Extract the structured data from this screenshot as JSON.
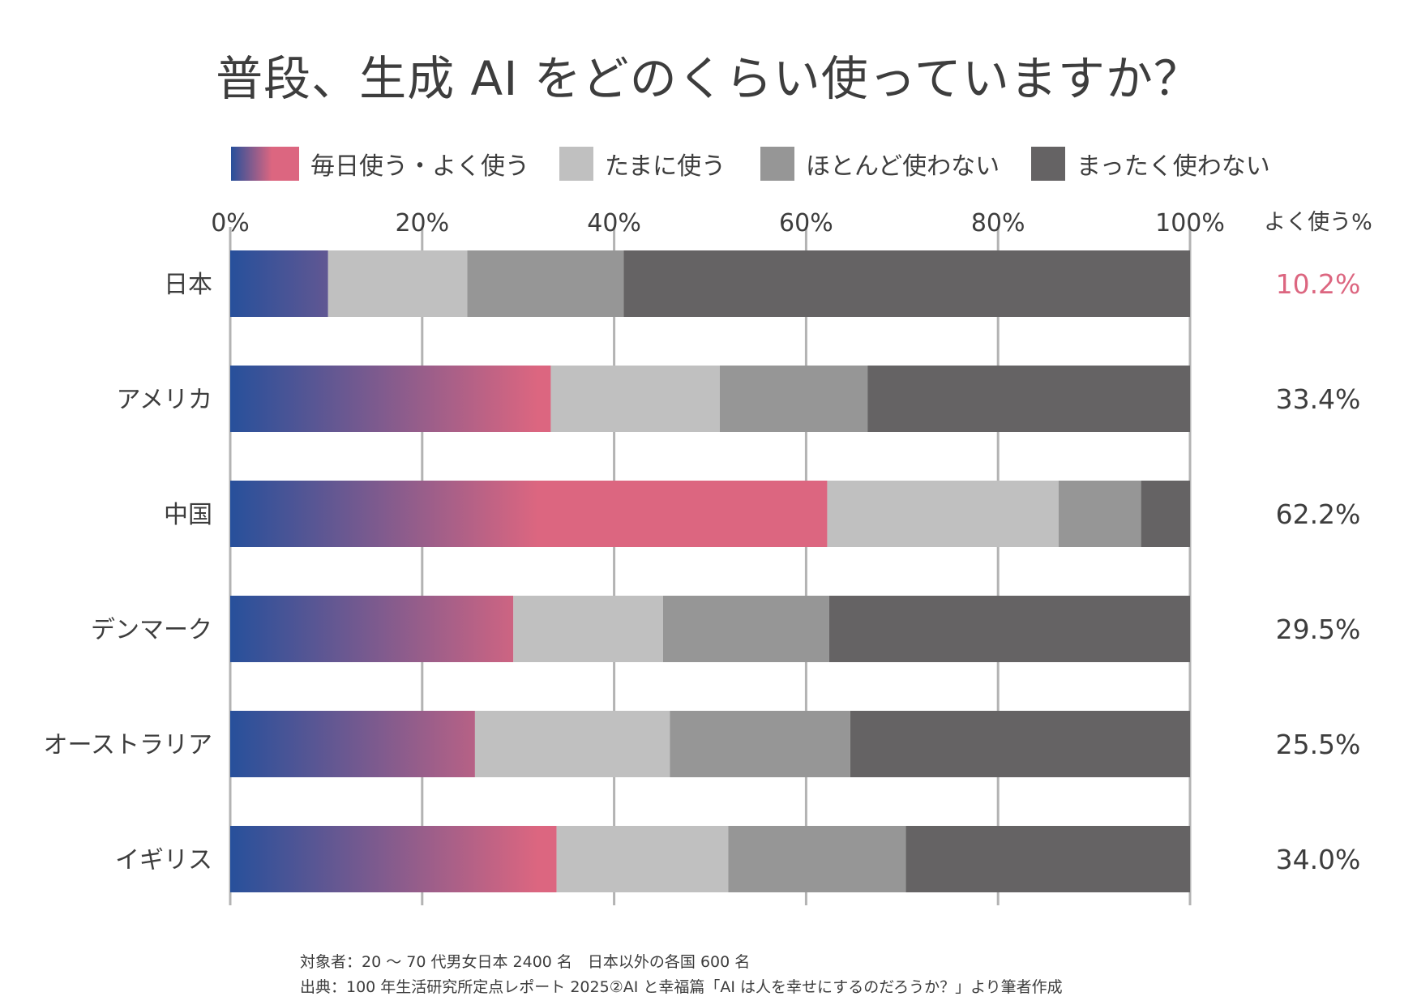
{
  "title": "普段、生成 AI をどのくらい使っていますか？",
  "chart_data": {
    "type": "bar",
    "orientation": "horizontal",
    "stacked": true,
    "categories": [
      "日本",
      "アメリカ",
      "中国",
      "デンマーク",
      "オーストラリア",
      "イギリス"
    ],
    "series": [
      {
        "name": "毎日使う・よく使う",
        "values": [
          10.2,
          33.4,
          62.2,
          29.5,
          25.5,
          34.0
        ],
        "color": "#dc6680",
        "gradient_start": "#27509b"
      },
      {
        "name": "たまに使う",
        "values": [
          14.5,
          17.6,
          24.1,
          15.6,
          20.3,
          17.9
        ],
        "color": "#c0c0c0"
      },
      {
        "name": "ほとんど使わない",
        "values": [
          16.3,
          15.4,
          8.6,
          17.3,
          18.8,
          18.5
        ],
        "color": "#969696"
      },
      {
        "name": "まったく使わない",
        "values": [
          59.0,
          33.6,
          5.1,
          37.6,
          35.4,
          29.6
        ],
        "color": "#656364"
      }
    ],
    "xlim": [
      0,
      100
    ],
    "x_ticks": [
      "0%",
      "20%",
      "40%",
      "60%",
      "80%",
      "100%"
    ],
    "grid": true,
    "legend": "top",
    "right_column": {
      "header": "よく使う%",
      "values": [
        "10.2%",
        "33.4%",
        "62.2%",
        "29.5%",
        "25.5%",
        "34.0%"
      ],
      "highlight_color": "#dc6680",
      "default_color": "#3d3d3d"
    }
  },
  "footnotes": [
    "対象者：20 〜 70 代男女日本 2400 名　日本以外の各国 600 名",
    "出典：100 年生活研究所定点レポート 2025②AI と幸福篇「AI は人を幸せにするのだろうか？」より筆者作成"
  ]
}
